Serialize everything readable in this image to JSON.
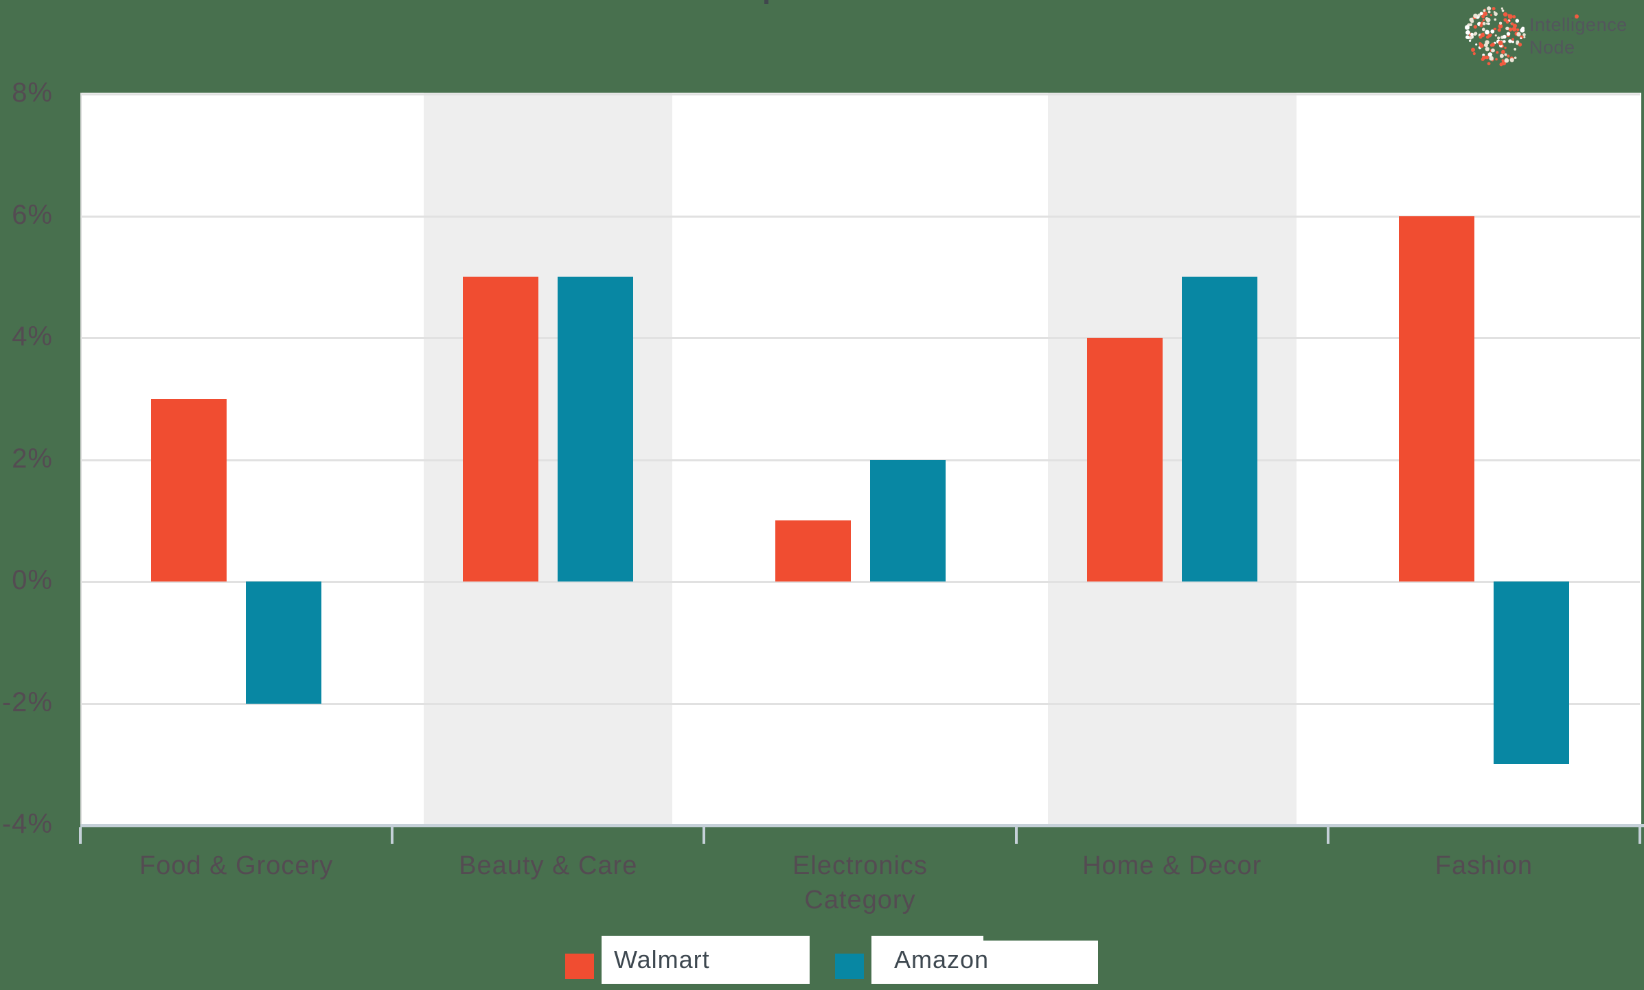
{
  "logo": {
    "line1": "Intelligence",
    "line2": "Node"
  },
  "chart_data": {
    "type": "bar",
    "title": "",
    "categories": [
      "Food & Grocery",
      "Beauty & Care",
      "Electronics",
      "Home & Decor",
      "Fashion"
    ],
    "series": [
      {
        "name": "Walmart",
        "color": "#F04D31",
        "values": [
          3,
          5,
          1,
          4,
          6
        ]
      },
      {
        "name": "Amazon",
        "color": "#0887A3",
        "values": [
          -2,
          5,
          2,
          5,
          -3
        ]
      }
    ],
    "xlabel": "Category",
    "ylabel": "",
    "ylim": [
      -4,
      8
    ],
    "ytick_values": [
      8,
      6,
      4,
      2,
      0,
      -2,
      -4
    ],
    "ytick_labels": [
      "8%",
      "6%",
      "4%",
      "2%",
      "0%",
      "-2%",
      "-4%"
    ],
    "grid": true,
    "legend_position": "bottom",
    "band_shading_category_indices": [
      1,
      3
    ],
    "colors": {
      "page_background": "#48704E",
      "plot_background": "#FFFFFF",
      "band_shading": "#EEEEEE",
      "gridline": "#E1E1E1",
      "axis_line": "#C5D0D8",
      "tick_label_text": "#544B52",
      "legend_text": "#3E4850",
      "logo_text": "#53565C",
      "logo_dot_red": "#F15B40",
      "logo_dot_cream": "#EAE4D6"
    }
  },
  "legend": {
    "items": [
      {
        "label": "Walmart",
        "color": "#F04D31"
      },
      {
        "label": "Amazon",
        "color": "#0887A3"
      }
    ]
  }
}
